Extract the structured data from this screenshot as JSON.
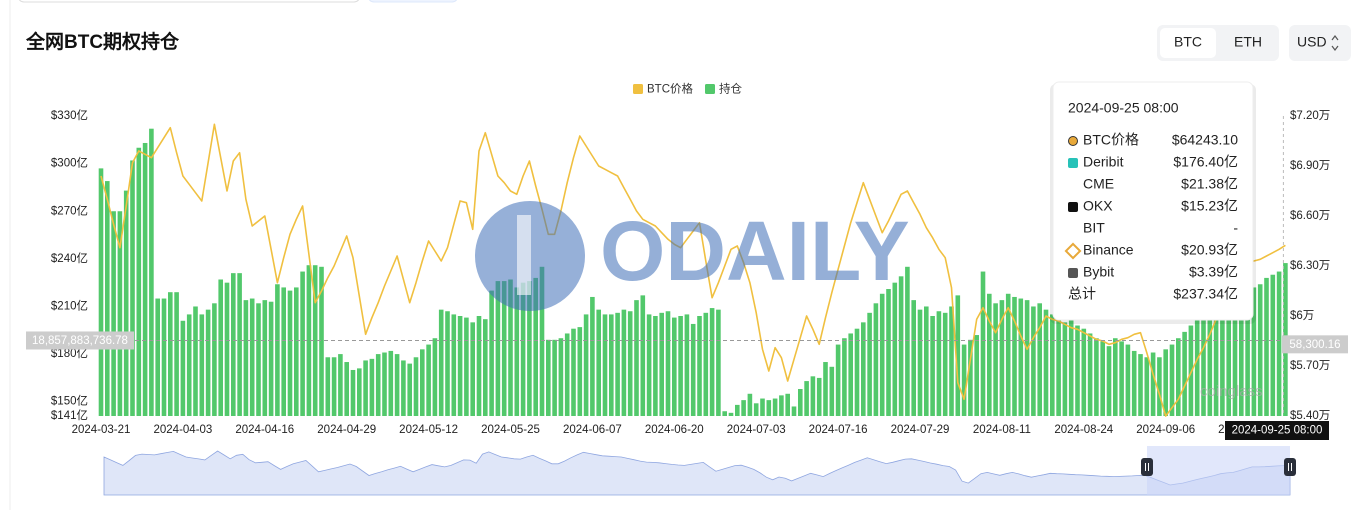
{
  "chart_data": {
    "type": "bar-line",
    "title": "全网BTC期权持仓",
    "toggle": [
      "BTC",
      "ETH"
    ],
    "currency": "USD",
    "categories": [
      "2024-03-21",
      null,
      null,
      null,
      null,
      null,
      null,
      null,
      null,
      null,
      null,
      null,
      null,
      "2024-04-03",
      null,
      null,
      null,
      null,
      null,
      null,
      null,
      null,
      null,
      null,
      null,
      null,
      "2024-04-16",
      null,
      null,
      null,
      null,
      null,
      null,
      null,
      null,
      null,
      null,
      null,
      null,
      "2024-04-29",
      null,
      null,
      null,
      null,
      null,
      null,
      null,
      null,
      null,
      null,
      null,
      null,
      "2024-05-12",
      null,
      null,
      null,
      null,
      null,
      null,
      null,
      null,
      null,
      null,
      null,
      null,
      "2024-05-25",
      null,
      null,
      null,
      null,
      null,
      null,
      null,
      null,
      null,
      null,
      null,
      null,
      "2024-06-07",
      null,
      null,
      null,
      null,
      null,
      null,
      null,
      null,
      null,
      null,
      null,
      null,
      "2024-06-20",
      null,
      null,
      null,
      null,
      null,
      null,
      null,
      null,
      null,
      null,
      null,
      null,
      "2024-07-03",
      null,
      null,
      null,
      null,
      null,
      null,
      null,
      null,
      null,
      null,
      null,
      null,
      "2024-07-16",
      null,
      null,
      null,
      null,
      null,
      null,
      null,
      null,
      null,
      null,
      null,
      null,
      "2024-07-29",
      null,
      null,
      null,
      null,
      null,
      null,
      null,
      null,
      null,
      null,
      null,
      null,
      "2024-08-11",
      null,
      null,
      null,
      null,
      null,
      null,
      null,
      null,
      null,
      null,
      null,
      null,
      "2024-08-24",
      null,
      null,
      null,
      null,
      null,
      null,
      null,
      null,
      null,
      null,
      null,
      null,
      "2024-09-06",
      null,
      null,
      null,
      null,
      null,
      null,
      null,
      null,
      null,
      null,
      null,
      null,
      "2024-09-19",
      null,
      null,
      null,
      null,
      null,
      null
    ],
    "series": [
      {
        "name": "BTC价格",
        "color": "#f0c040",
        "kind": "line",
        "axis": "y2",
        "values": [
          6.84,
          6.7,
          6.55,
          6.41,
          6.66,
          6.92,
          6.99,
          6.97,
          6.95,
          7.01,
          7.07,
          7.13,
          6.98,
          6.84,
          6.79,
          6.74,
          6.69,
          6.92,
          7.15,
          6.95,
          6.75,
          6.93,
          6.98,
          6.7,
          6.54,
          6.57,
          6.6,
          6.4,
          6.2,
          6.35,
          6.49,
          6.58,
          6.66,
          6.37,
          6.08,
          6.15,
          6.23,
          6.3,
          6.39,
          6.48,
          6.35,
          6.12,
          5.89,
          5.99,
          6.08,
          6.18,
          6.27,
          6.36,
          6.22,
          6.08,
          6.2,
          6.33,
          6.45,
          6.39,
          6.33,
          6.41,
          6.55,
          6.69,
          6.68,
          6.52,
          6.99,
          7.1,
          6.97,
          6.84,
          6.8,
          6.75,
          6.73,
          6.84,
          6.93,
          6.78,
          6.64,
          6.49,
          6.49,
          6.63,
          6.8,
          6.95,
          7.08,
          7.02,
          6.96,
          6.9,
          6.88,
          6.86,
          6.84,
          6.77,
          6.7,
          6.63,
          6.58,
          6.56,
          6.54,
          6.5,
          6.46,
          6.43,
          6.41,
          6.46,
          6.51,
          6.56,
          6.33,
          6.11,
          6.2,
          6.3,
          6.4,
          6.42,
          6.32,
          6.2,
          6.02,
          5.8,
          5.67,
          5.81,
          5.75,
          5.61,
          5.74,
          5.87,
          6.0,
          5.92,
          5.83,
          5.99,
          6.14,
          6.28,
          6.42,
          6.56,
          6.68,
          6.8,
          6.7,
          6.6,
          6.5,
          6.57,
          6.65,
          6.73,
          6.75,
          6.68,
          6.61,
          6.53,
          6.47,
          6.4,
          6.35,
          6.17,
          5.6,
          5.5,
          5.74,
          5.98,
          6.05,
          5.97,
          5.9,
          5.98,
          6.05,
          5.97,
          5.88,
          5.8,
          5.87,
          5.93,
          6.0,
          5.98,
          5.97,
          5.95,
          5.93,
          5.92,
          5.9,
          5.88,
          5.86,
          5.85,
          5.83,
          5.84,
          5.86,
          5.87,
          5.89,
          5.9,
          5.78,
          5.65,
          5.53,
          5.4,
          5.45,
          5.5,
          5.58,
          5.66,
          5.74,
          5.81,
          5.89,
          5.98,
          6.02,
          6.05,
          6.14,
          6.24,
          6.33,
          6.33,
          6.34,
          6.36,
          6.38,
          6.4,
          6.42431
        ]
      },
      {
        "name": "持仓",
        "color": "#52c86b",
        "kind": "bar",
        "axis": "y",
        "values": [
          297,
          289,
          270,
          270,
          283,
          302,
          310,
          313,
          322,
          215,
          215,
          219,
          219,
          201,
          205,
          210,
          205,
          208,
          212,
          227,
          225,
          231,
          231,
          214,
          215,
          212,
          214,
          213,
          224,
          222,
          220,
          222,
          232,
          236,
          236,
          235,
          178,
          178,
          180,
          175,
          170,
          171,
          176,
          177,
          180,
          181,
          182,
          180,
          176,
          174,
          178,
          183,
          186,
          190,
          208,
          207,
          205,
          204,
          203,
          200,
          204,
          202,
          220,
          226,
          226,
          227,
          222,
          225,
          226,
          228,
          235,
          189,
          189,
          190,
          193,
          196,
          197,
          205,
          216,
          208,
          205,
          205,
          206,
          208,
          207,
          214,
          217,
          205,
          204,
          206,
          207,
          203,
          204,
          205,
          199,
          204,
          206,
          209,
          208,
          144,
          143,
          148,
          151,
          155,
          149,
          152,
          151,
          152,
          154,
          155,
          147,
          158,
          163,
          166,
          165,
          175,
          172,
          186,
          190,
          193,
          196,
          200,
          206,
          212,
          218,
          221,
          225,
          229,
          235,
          214,
          208,
          210,
          204,
          207,
          206,
          210,
          217,
          186,
          189,
          192,
          232,
          218,
          212,
          214,
          218,
          216,
          215,
          214,
          210,
          212,
          208,
          205,
          202,
          200,
          205,
          198,
          196,
          193,
          190,
          188,
          185,
          190,
          188,
          186,
          182,
          180,
          178,
          181,
          178,
          183,
          186,
          190,
          194,
          198,
          203,
          212,
          216,
          218,
          222,
          218,
          220,
          218,
          220,
          222,
          224,
          228,
          230,
          232,
          237.34
        ]
      }
    ],
    "ylim": [
      141,
      330
    ],
    "yticks": [
      {
        "value": 141,
        "label": "$141亿"
      },
      {
        "value": 150,
        "label": "$150亿"
      },
      {
        "value": 180,
        "label": "$180亿"
      },
      {
        "value": 210,
        "label": "$210亿"
      },
      {
        "value": 240,
        "label": "$240亿"
      },
      {
        "value": 270,
        "label": "$270亿"
      },
      {
        "value": 300,
        "label": "$300亿"
      },
      {
        "value": 330,
        "label": "$330亿"
      }
    ],
    "y2lim": [
      5.4,
      7.2
    ],
    "y2ticks": [
      {
        "value": 5.4,
        "label": "$5.40万"
      },
      {
        "value": 5.7,
        "label": "$5.70万"
      },
      {
        "value": 6,
        "label": "$6万"
      },
      {
        "value": 6.3,
        "label": "$6.30万"
      },
      {
        "value": 6.6,
        "label": "$6.60万"
      },
      {
        "value": 6.9,
        "label": "$6.90万"
      },
      {
        "value": 7.2,
        "label": "$7.20万"
      }
    ],
    "grid": false,
    "legend": "top",
    "crosshair": {
      "y": {
        "value": 188.5788373678,
        "label": "18,857,883,736.78"
      },
      "y2": {
        "value": 5.830016,
        "label": "58,300.16"
      },
      "x_label": "2024-09-25 08:00"
    },
    "tooltip": {
      "date": "2024-09-25 08:00",
      "items": [
        {
          "name": "BTC价格",
          "value": "$64243.10"
        },
        {
          "name": "Deribit",
          "value": "$176.40亿"
        },
        {
          "name": "CME",
          "value": "$21.38亿"
        },
        {
          "name": "OKX",
          "value": "$15.23亿"
        },
        {
          "name": "BIT",
          "value": "-"
        },
        {
          "name": "Binance",
          "value": "$20.93亿"
        },
        {
          "name": "Bybit",
          "value": "$3.39亿"
        },
        {
          "name": "总计",
          "value": "$237.34亿"
        }
      ]
    },
    "watermark": [
      "ODAILY",
      "coinglass"
    ]
  }
}
